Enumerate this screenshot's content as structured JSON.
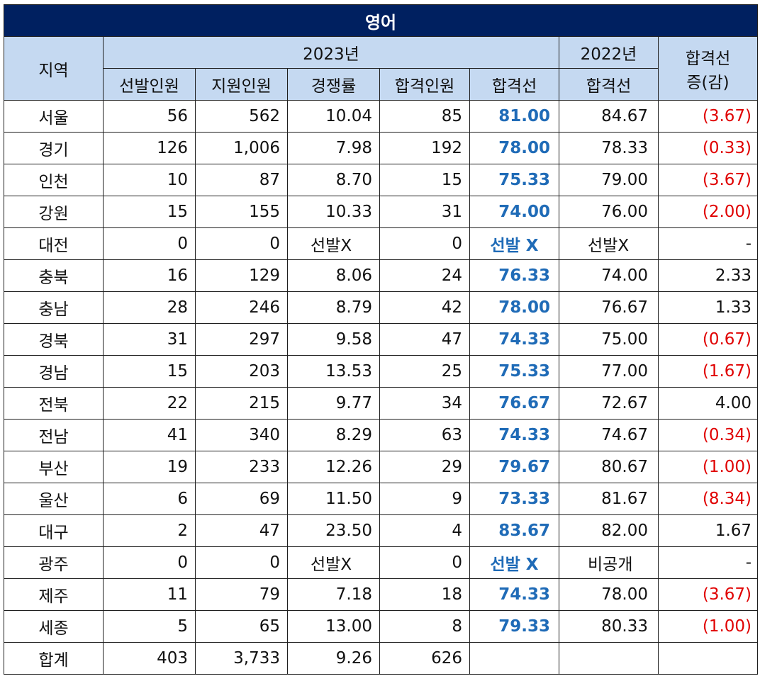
{
  "title": "영어",
  "headers": {
    "region": "지역",
    "year_2023": "2023년",
    "year_2022": "2022년",
    "change": "합격선\n증(감)",
    "change_line1": "합격선",
    "change_line2": "증(감)",
    "cols_2023": [
      "선발인원",
      "지원인원",
      "경쟁률",
      "합격인원",
      "합격선"
    ],
    "col_2022": "합격선"
  },
  "rows": [
    {
      "region": "서울",
      "selected": "56",
      "applicants": "562",
      "ratio": "10.04",
      "passed": "85",
      "cutoff": "81.00",
      "cutoff_2022": "84.67",
      "change": "(3.67)",
      "neg": true
    },
    {
      "region": "경기",
      "selected": "126",
      "applicants": "1,006",
      "ratio": "7.98",
      "passed": "192",
      "cutoff": "78.00",
      "cutoff_2022": "78.33",
      "change": "(0.33)",
      "neg": true
    },
    {
      "region": "인천",
      "selected": "10",
      "applicants": "87",
      "ratio": "8.70",
      "passed": "15",
      "cutoff": "75.33",
      "cutoff_2022": "79.00",
      "change": "(3.67)",
      "neg": true
    },
    {
      "region": "강원",
      "selected": "15",
      "applicants": "155",
      "ratio": "10.33",
      "passed": "31",
      "cutoff": "74.00",
      "cutoff_2022": "76.00",
      "change": "(2.00)",
      "neg": true
    },
    {
      "region": "대전",
      "selected": "0",
      "applicants": "0",
      "ratio": "선발X",
      "passed": "0",
      "cutoff": "선발 X",
      "cutoff_2022": "선발X",
      "change": "-",
      "neg": false,
      "none": true
    },
    {
      "region": "충북",
      "selected": "16",
      "applicants": "129",
      "ratio": "8.06",
      "passed": "24",
      "cutoff": "76.33",
      "cutoff_2022": "74.00",
      "change": "2.33",
      "neg": false
    },
    {
      "region": "충남",
      "selected": "28",
      "applicants": "246",
      "ratio": "8.79",
      "passed": "42",
      "cutoff": "78.00",
      "cutoff_2022": "76.67",
      "change": "1.33",
      "neg": false
    },
    {
      "region": "경북",
      "selected": "31",
      "applicants": "297",
      "ratio": "9.58",
      "passed": "47",
      "cutoff": "74.33",
      "cutoff_2022": "75.00",
      "change": "(0.67)",
      "neg": true
    },
    {
      "region": "경남",
      "selected": "15",
      "applicants": "203",
      "ratio": "13.53",
      "passed": "25",
      "cutoff": "75.33",
      "cutoff_2022": "77.00",
      "change": "(1.67)",
      "neg": true
    },
    {
      "region": "전북",
      "selected": "22",
      "applicants": "215",
      "ratio": "9.77",
      "passed": "34",
      "cutoff": "76.67",
      "cutoff_2022": "72.67",
      "change": "4.00",
      "neg": false
    },
    {
      "region": "전남",
      "selected": "41",
      "applicants": "340",
      "ratio": "8.29",
      "passed": "63",
      "cutoff": "74.33",
      "cutoff_2022": "74.67",
      "change": "(0.34)",
      "neg": true
    },
    {
      "region": "부산",
      "selected": "19",
      "applicants": "233",
      "ratio": "12.26",
      "passed": "29",
      "cutoff": "79.67",
      "cutoff_2022": "80.67",
      "change": "(1.00)",
      "neg": true
    },
    {
      "region": "울산",
      "selected": "6",
      "applicants": "69",
      "ratio": "11.50",
      "passed": "9",
      "cutoff": "73.33",
      "cutoff_2022": "81.67",
      "change": "(8.34)",
      "neg": true
    },
    {
      "region": "대구",
      "selected": "2",
      "applicants": "47",
      "ratio": "23.50",
      "passed": "4",
      "cutoff": "83.67",
      "cutoff_2022": "82.00",
      "change": "1.67",
      "neg": false
    },
    {
      "region": "광주",
      "selected": "0",
      "applicants": "0",
      "ratio": "선발X",
      "passed": "0",
      "cutoff": "선발 X",
      "cutoff_2022": "비공개",
      "change": "-",
      "neg": false,
      "none": true
    },
    {
      "region": "제주",
      "selected": "11",
      "applicants": "79",
      "ratio": "7.18",
      "passed": "18",
      "cutoff": "74.33",
      "cutoff_2022": "78.00",
      "change": "(3.67)",
      "neg": true
    },
    {
      "region": "세종",
      "selected": "5",
      "applicants": "65",
      "ratio": "13.00",
      "passed": "8",
      "cutoff": "79.33",
      "cutoff_2022": "80.33",
      "change": "(1.00)",
      "neg": true
    }
  ],
  "total": {
    "region": "합계",
    "selected": "403",
    "applicants": "3,733",
    "ratio": "9.26",
    "passed": "626"
  }
}
